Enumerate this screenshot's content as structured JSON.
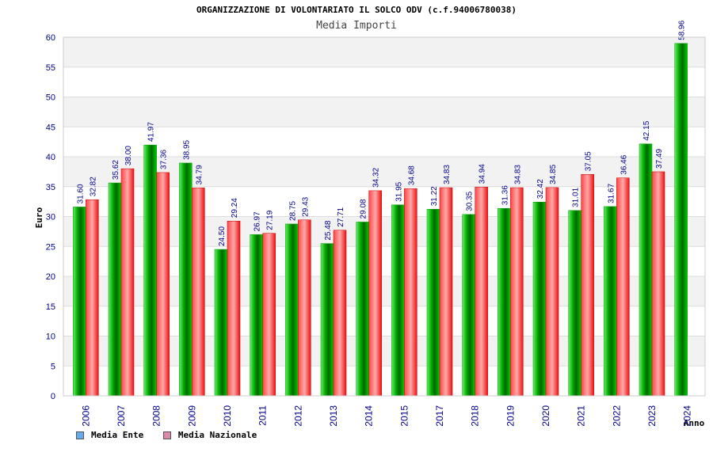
{
  "chart_data": {
    "type": "bar",
    "title": "ORGANIZZAZIONE DI VOLONTARIATO IL SOLCO ODV (c.f.94006780038)",
    "subtitle": "Media Importi",
    "xlabel": "Anno",
    "ylabel": "Euro",
    "ylim": [
      0,
      60
    ],
    "yticks": [
      0,
      5,
      10,
      15,
      20,
      25,
      30,
      35,
      40,
      45,
      50,
      55,
      60
    ],
    "grid": true,
    "legend_position": "bottom-left",
    "categories": [
      "2006",
      "2007",
      "2008",
      "2009",
      "2010",
      "2011",
      "2012",
      "2013",
      "2014",
      "2015",
      "2017",
      "2018",
      "2019",
      "2020",
      "2021",
      "2022",
      "2023",
      "2024"
    ],
    "series": [
      {
        "name": "Media Ente",
        "color": "#00cc00",
        "legend_color": "#66aaee",
        "values": [
          31.6,
          35.62,
          41.97,
          38.95,
          24.5,
          26.97,
          28.75,
          25.48,
          29.08,
          31.95,
          31.22,
          30.35,
          31.36,
          32.42,
          31.01,
          31.67,
          42.15,
          58.96
        ],
        "labels": [
          "31.60",
          "35.62",
          "41.97",
          "38.95",
          "24.50",
          "26.97",
          "28.75",
          "25.48",
          "29.08",
          "31.95",
          "31.22",
          "30.35",
          "31.36",
          "32.42",
          "31.01",
          "31.67",
          "42.15",
          "58.96"
        ]
      },
      {
        "name": "Media Nazionale",
        "color": "#ee2222",
        "legend_color": "#dd88aa",
        "values": [
          32.82,
          38.0,
          37.36,
          34.79,
          29.24,
          27.19,
          29.43,
          27.71,
          34.32,
          34.68,
          34.83,
          34.94,
          34.83,
          34.85,
          37.05,
          36.46,
          37.49,
          null
        ],
        "labels": [
          "32.82",
          "38.00",
          "37.36",
          "34.79",
          "29.24",
          "27.19",
          "29.43",
          "27.71",
          "34.32",
          "34.68",
          "34.83",
          "34.94",
          "34.83",
          "34.85",
          "37.05",
          "36.46",
          "37.49",
          null
        ]
      }
    ]
  }
}
